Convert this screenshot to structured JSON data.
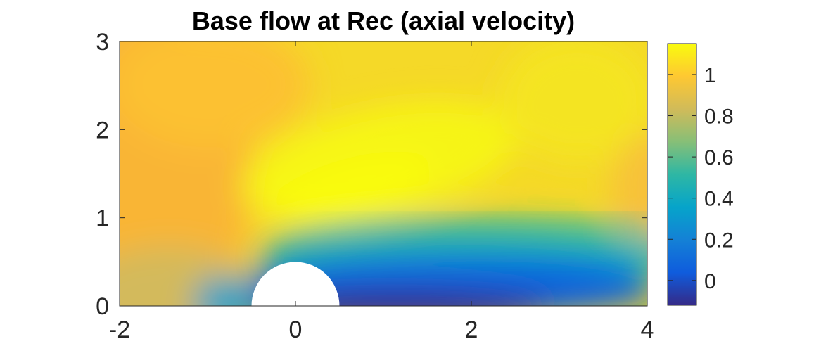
{
  "chart_data": {
    "type": "heatmap",
    "title": "Base flow at Rec (axial velocity)",
    "xlabel": "",
    "ylabel": "",
    "xlim": [
      -2,
      4
    ],
    "ylim": [
      0,
      3
    ],
    "x_ticks": [
      "-2",
      "0",
      "2",
      "4"
    ],
    "y_ticks": [
      "0",
      "1",
      "2",
      "3"
    ],
    "grid": false,
    "colormap": "parula",
    "colorbar": {
      "clim": [
        -0.12,
        1.15
      ],
      "ticks": [
        "0",
        "0.2",
        "0.4",
        "0.6",
        "0.8",
        "1"
      ],
      "colors": [
        "#352a87",
        "#0f5cdd",
        "#1481d6",
        "#06a4ca",
        "#2eb7a4",
        "#87bf77",
        "#d1bb59",
        "#fec832",
        "#f9fb0e"
      ]
    },
    "obstacle": {
      "shape": "half-circle",
      "center_x": 0,
      "center_y": 0,
      "radius": 0.5
    },
    "field_samples": [
      {
        "x": -2.0,
        "y": 0.0,
        "value": 0.85
      },
      {
        "x": -2.0,
        "y": 3.0,
        "value": 0.92
      },
      {
        "x": -1.0,
        "y": 0.1,
        "value": 0.6
      },
      {
        "x": -0.5,
        "y": 0.7,
        "value": 0.95
      },
      {
        "x": 0.0,
        "y": 0.7,
        "value": 0.45
      },
      {
        "x": 1.0,
        "y": 1.2,
        "value": 1.15
      },
      {
        "x": 1.0,
        "y": 0.1,
        "value": -0.1
      },
      {
        "x": 3.0,
        "y": 0.2,
        "value": 0.0
      },
      {
        "x": 4.0,
        "y": 0.6,
        "value": 0.3
      },
      {
        "x": 4.0,
        "y": 3.0,
        "value": 1.05
      }
    ]
  }
}
